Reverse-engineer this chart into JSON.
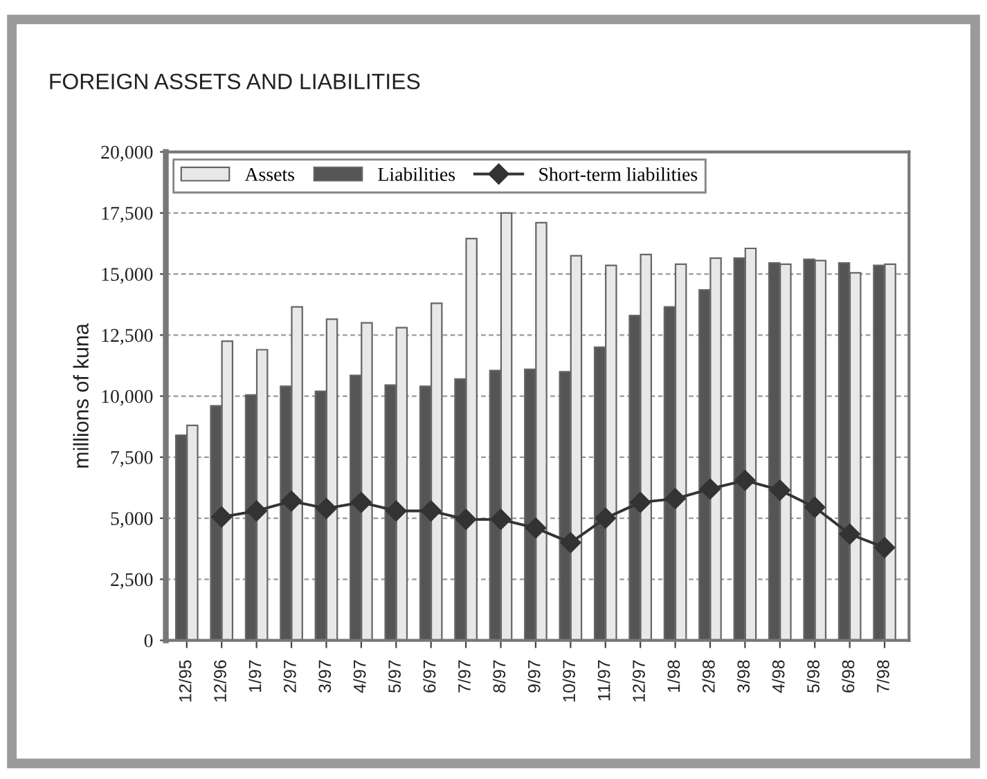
{
  "chart_data": {
    "type": "bar",
    "title": "FOREIGN ASSETS AND LIABILITIES",
    "ylabel": "millions of kuna",
    "categories": [
      "12/95",
      "12/96",
      "1/97",
      "2/97",
      "3/97",
      "4/97",
      "5/97",
      "6/97",
      "7/97",
      "8/97",
      "9/97",
      "10/97",
      "11/97",
      "12/97",
      "1/98",
      "2/98",
      "3/98",
      "4/98",
      "5/98",
      "6/98",
      "7/98"
    ],
    "series": [
      {
        "name": "Assets",
        "color": "#e8e8e8",
        "values": [
          8800,
          12250,
          11900,
          13650,
          13150,
          13000,
          12800,
          13800,
          16450,
          17500,
          17100,
          15750,
          15350,
          15800,
          15400,
          15650,
          16050,
          15400,
          15550,
          15050,
          15400
        ]
      },
      {
        "name": "Liabilities",
        "color": "#555555",
        "values": [
          8400,
          9600,
          10050,
          10400,
          10200,
          10850,
          10450,
          10400,
          10700,
          11050,
          11100,
          11000,
          12000,
          13300,
          13650,
          14350,
          15650,
          15450,
          15600,
          15450,
          15350
        ]
      },
      {
        "name": "Short-term liabilities",
        "type": "line",
        "color": "#333333",
        "marker": "diamond",
        "line_style": "solid",
        "values": [
          null,
          5050,
          5300,
          5700,
          5400,
          5650,
          5300,
          5300,
          4950,
          4950,
          4600,
          4000,
          5000,
          5650,
          5800,
          6200,
          6550,
          6150,
          5450,
          4350,
          3800
        ]
      }
    ],
    "ylim": [
      0,
      20000
    ],
    "yticks": [
      0,
      {
        "value": 2500,
        "label": "2,500"
      },
      {
        "value": 5000,
        "label": "5,000"
      },
      {
        "value": 7500,
        "label": "7,500"
      },
      {
        "value": 10000,
        "label": "10,000"
      },
      {
        "value": 12500,
        "label": "12,500"
      },
      {
        "value": 15000,
        "label": "15,000"
      },
      {
        "value": 17500,
        "label": "17,500"
      },
      {
        "value": 20000,
        "label": "20,000"
      }
    ],
    "grid": "y",
    "legend": "top left"
  }
}
